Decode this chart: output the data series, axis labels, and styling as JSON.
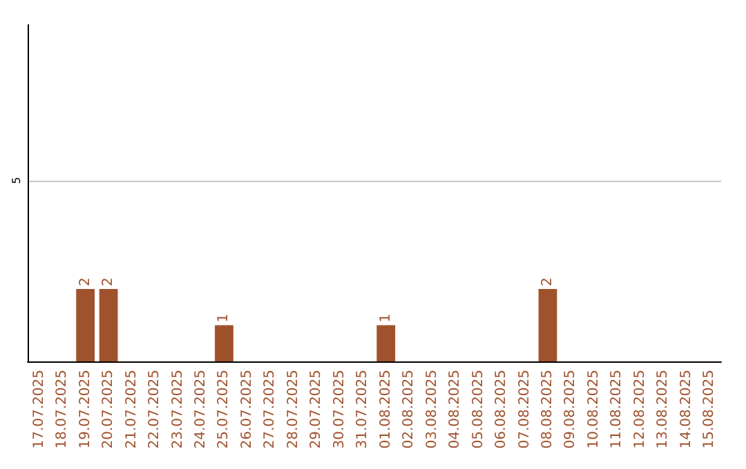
{
  "chart_data": {
    "type": "bar",
    "categories": [
      "17.07.2025",
      "18.07.2025",
      "19.07.2025",
      "20.07.2025",
      "21.07.2025",
      "22.07.2025",
      "23.07.2025",
      "24.07.2025",
      "25.07.2025",
      "26.07.2025",
      "27.07.2025",
      "28.07.2025",
      "29.07.2025",
      "30.07.2025",
      "31.07.2025",
      "01.08.2025",
      "02.08.2025",
      "03.08.2025",
      "04.08.2025",
      "05.08.2025",
      "06.08.2025",
      "07.08.2025",
      "08.08.2025",
      "09.08.2025",
      "10.08.2025",
      "11.08.2025",
      "12.08.2025",
      "13.08.2025",
      "14.08.2025",
      "15.08.2025"
    ],
    "values": [
      0,
      0,
      2,
      2,
      0,
      0,
      0,
      0,
      1,
      0,
      0,
      0,
      0,
      0,
      0,
      1,
      0,
      0,
      0,
      0,
      0,
      0,
      2,
      0,
      0,
      0,
      0,
      0,
      0,
      0
    ],
    "value_labels": [
      null,
      null,
      "2",
      "2",
      null,
      null,
      null,
      null,
      "1",
      null,
      null,
      null,
      null,
      null,
      null,
      "1",
      null,
      null,
      null,
      null,
      null,
      null,
      "2",
      null,
      null,
      null,
      null,
      null,
      null,
      null
    ],
    "color": "#a0522d",
    "ylim": [
      0,
      9.3
    ],
    "yticks": [
      5
    ],
    "grid": "y"
  }
}
